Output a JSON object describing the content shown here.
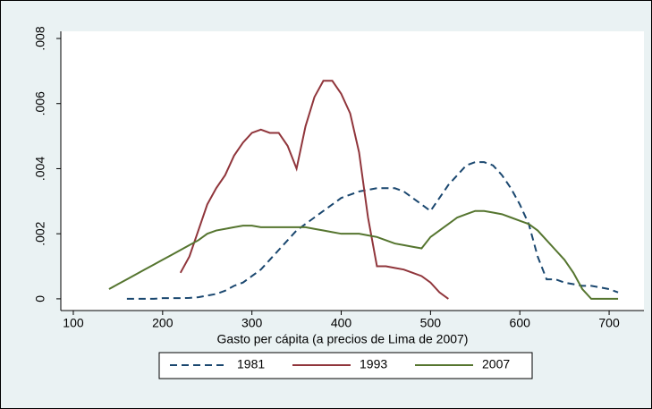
{
  "chart_data": {
    "type": "line",
    "x_label": "Gasto per cápita (a precios de Lima de 2007)",
    "x": [
      140,
      150,
      160,
      170,
      180,
      190,
      200,
      210,
      220,
      230,
      240,
      250,
      260,
      270,
      280,
      290,
      300,
      310,
      320,
      330,
      340,
      350,
      360,
      370,
      380,
      390,
      400,
      410,
      420,
      430,
      440,
      450,
      460,
      470,
      480,
      490,
      500,
      510,
      520,
      530,
      540,
      550,
      560,
      570,
      580,
      590,
      600,
      610,
      620,
      630,
      640,
      650,
      660,
      670,
      680,
      690,
      700,
      710
    ],
    "xlim": [
      86,
      739
    ],
    "xticks": [
      100,
      200,
      300,
      400,
      500,
      600,
      700
    ],
    "ylim": [
      -0.00036,
      0.00822
    ],
    "yticks": [
      0,
      {
        "value": 0.002,
        "label": ".002"
      },
      {
        "value": 0.004,
        "label": ".004"
      },
      {
        "value": 0.006,
        "label": ".006"
      },
      {
        "value": 0.008,
        "label": ".008"
      }
    ],
    "series": [
      {
        "name": "1981",
        "color": "#1a476f",
        "dashed": true,
        "values": [
          null,
          null,
          0,
          0,
          0,
          0,
          2e-05,
          2e-05,
          2e-05,
          3e-05,
          5e-05,
          0.0001,
          0.00015,
          0.00025,
          0.0004,
          0.0005,
          0.0007,
          0.0009,
          0.0012,
          0.0015,
          0.0018,
          0.0021,
          0.0023,
          0.0025,
          0.0027,
          0.0029,
          0.0031,
          0.0032,
          0.0033,
          0.00335,
          0.0034,
          0.0034,
          0.0034,
          0.0033,
          0.0031,
          0.0029,
          0.0027,
          0.0031,
          0.0035,
          0.0038,
          0.0041,
          0.0042,
          0.0042,
          0.0041,
          0.0038,
          0.0034,
          0.0029,
          0.0023,
          0.0013,
          0.0006,
          0.0006,
          0.0005,
          0.00045,
          0.0004,
          0.0004,
          0.00035,
          0.0003,
          0.0002
        ]
      },
      {
        "name": "1993",
        "color": "#90353b",
        "dashed": false,
        "values": [
          null,
          null,
          null,
          null,
          null,
          null,
          null,
          null,
          0.0008,
          0.0013,
          0.0021,
          0.0029,
          0.0034,
          0.0038,
          0.0044,
          0.0048,
          0.0051,
          0.0052,
          0.0051,
          0.0051,
          0.0047,
          0.004,
          0.0053,
          0.0062,
          0.0067,
          0.0067,
          0.0063,
          0.0057,
          0.0045,
          0.0025,
          0.001,
          0.001,
          0.00095,
          0.0009,
          0.0008,
          0.0007,
          0.0005,
          0.0002,
          0,
          null,
          null,
          null,
          null,
          null,
          null,
          null,
          null,
          null,
          null,
          null,
          null,
          null,
          null,
          null,
          null,
          null,
          null,
          null
        ]
      },
      {
        "name": "2007",
        "color": "#55752f",
        "dashed": false,
        "values": [
          0.0003,
          0.00045,
          0.0006,
          0.00075,
          0.0009,
          0.00105,
          0.0012,
          0.00135,
          0.0015,
          0.00165,
          0.0018,
          0.002,
          0.0021,
          0.00215,
          0.0022,
          0.00225,
          0.00225,
          0.0022,
          0.0022,
          0.0022,
          0.0022,
          0.0022,
          0.0022,
          0.00215,
          0.0021,
          0.00205,
          0.002,
          0.002,
          0.002,
          0.00195,
          0.0019,
          0.0018,
          0.0017,
          0.00165,
          0.0016,
          0.00155,
          0.0019,
          0.0021,
          0.0023,
          0.0025,
          0.0026,
          0.0027,
          0.0027,
          0.00265,
          0.0026,
          0.0025,
          0.0024,
          0.0023,
          0.0021,
          0.0018,
          0.0015,
          0.0012,
          0.0008,
          0.0003,
          0,
          0,
          0,
          0
        ]
      }
    ]
  }
}
